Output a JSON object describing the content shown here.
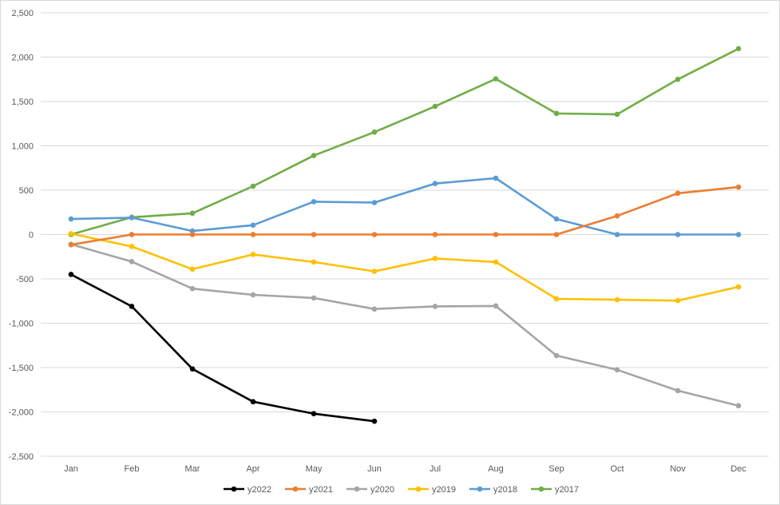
{
  "chart_data": {
    "type": "line",
    "title": "",
    "xlabel": "",
    "ylabel": "",
    "categories": [
      "Jan",
      "Feb",
      "Mar",
      "Apr",
      "May",
      "Jun",
      "Jul",
      "Aug",
      "Sep",
      "Oct",
      "Nov",
      "Dec"
    ],
    "ylim": [
      -2500,
      2500
    ],
    "yticks": [
      2500,
      2000,
      1500,
      1000,
      500,
      0,
      -500,
      -1000,
      -1500,
      -2000,
      -2500
    ],
    "ytick_labels": [
      "2,500",
      "2,000",
      "1,500",
      "1,000",
      "500",
      "0",
      "-500",
      "-1,000",
      "-1,500",
      "-2,000",
      "-2,500"
    ],
    "grid": true,
    "legend_position": "bottom",
    "series": [
      {
        "name": "y2022",
        "color": "#000000",
        "values": [
          -450,
          -810,
          -1515,
          -1885,
          -2020,
          -2105,
          null,
          null,
          null,
          null,
          null,
          null
        ]
      },
      {
        "name": "y2021",
        "color": "#ED7D31",
        "values": [
          -115,
          0,
          0,
          0,
          0,
          0,
          0,
          0,
          0,
          210,
          465,
          535
        ]
      },
      {
        "name": "y2020",
        "color": "#A5A5A5",
        "values": [
          -110,
          -305,
          -610,
          -680,
          -715,
          -840,
          -810,
          -805,
          -1365,
          -1525,
          -1760,
          -1930
        ]
      },
      {
        "name": "y2019",
        "color": "#FFC000",
        "values": [
          10,
          -135,
          -390,
          -225,
          -310,
          -415,
          -270,
          -310,
          -725,
          -735,
          -745,
          -590
        ]
      },
      {
        "name": "y2018",
        "color": "#5B9BD5",
        "values": [
          175,
          190,
          40,
          105,
          370,
          360,
          575,
          635,
          175,
          0,
          0,
          0
        ]
      },
      {
        "name": "y2017",
        "color": "#70AD47",
        "values": [
          0,
          195,
          240,
          545,
          890,
          1155,
          1445,
          1755,
          1365,
          1355,
          1750,
          2095
        ]
      }
    ]
  }
}
